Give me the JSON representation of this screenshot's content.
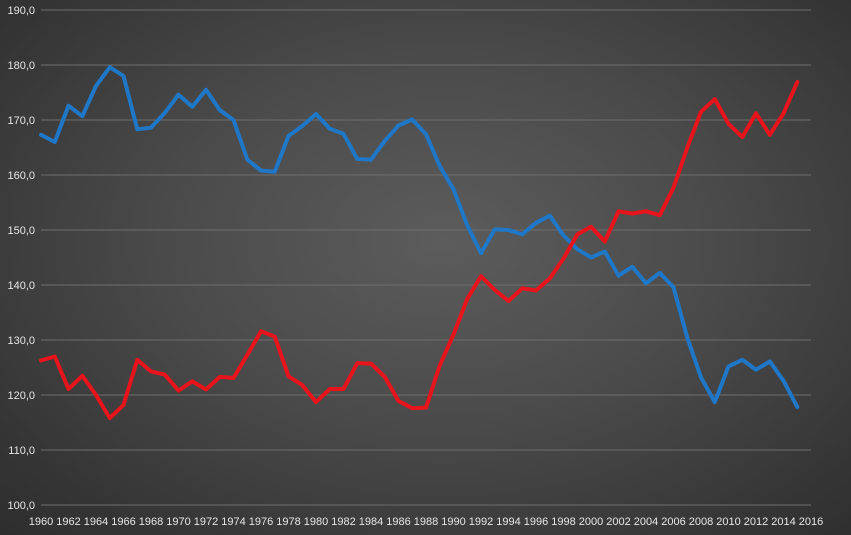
{
  "chart_data": {
    "type": "line",
    "title": "",
    "xlabel": "",
    "ylabel": "",
    "ylim": [
      100,
      190
    ],
    "y_ticks": [
      "100,0",
      "110,0",
      "120,0",
      "130,0",
      "140,0",
      "150,0",
      "160,0",
      "170,0",
      "180,0",
      "190,0"
    ],
    "y_tick_values": [
      100,
      110,
      120,
      130,
      140,
      150,
      160,
      170,
      180,
      190
    ],
    "x_ticks": [
      "1960",
      "1962",
      "1964",
      "1966",
      "1968",
      "1970",
      "1972",
      "1974",
      "1976",
      "1978",
      "1980",
      "1982",
      "1984",
      "1986",
      "1988",
      "1990",
      "1992",
      "1994",
      "1996",
      "1998",
      "2000",
      "2002",
      "2004",
      "2006",
      "2008",
      "2010",
      "2012",
      "2014",
      "2016"
    ],
    "x_tick_values": [
      1960,
      1962,
      1964,
      1966,
      1968,
      1970,
      1972,
      1974,
      1976,
      1978,
      1980,
      1982,
      1984,
      1986,
      1988,
      1990,
      1992,
      1994,
      1996,
      1998,
      2000,
      2002,
      2004,
      2006,
      2008,
      2010,
      2012,
      2014,
      2016
    ],
    "xlim": [
      1960,
      2016
    ],
    "grid": true,
    "legend": "none",
    "x": [
      1960,
      1961,
      1962,
      1963,
      1964,
      1965,
      1966,
      1967,
      1968,
      1969,
      1970,
      1971,
      1972,
      1973,
      1974,
      1975,
      1976,
      1977,
      1978,
      1979,
      1980,
      1981,
      1982,
      1983,
      1984,
      1985,
      1986,
      1987,
      1988,
      1989,
      1990,
      1991,
      1992,
      1993,
      1994,
      1995,
      1996,
      1997,
      1998,
      1999,
      2000,
      2001,
      2002,
      2003,
      2004,
      2005,
      2006,
      2007,
      2008,
      2009,
      2010,
      2011,
      2012,
      2013,
      2014,
      2015
    ],
    "series": [
      {
        "color": "#1f77c8",
        "values": [
          167.3,
          166.0,
          172.6,
          170.7,
          176.2,
          179.6,
          178.0,
          168.3,
          168.6,
          171.3,
          174.6,
          172.4,
          175.5,
          171.8,
          170.0,
          162.8,
          160.8,
          160.6,
          167.1,
          168.9,
          171.1,
          168.4,
          167.5,
          162.9,
          162.8,
          166.2,
          169.0,
          170.1,
          167.4,
          161.6,
          157.4,
          150.8,
          145.8,
          150.1,
          150.0,
          149.2,
          151.3,
          152.6,
          149.0,
          146.5,
          145.0,
          146.1,
          141.7,
          143.3,
          140.3,
          142.2,
          139.6,
          130.4,
          123.2,
          118.7,
          125.2,
          126.4,
          124.6,
          126.1,
          122.6,
          117.8
        ]
      },
      {
        "color": "#e8141c",
        "values": [
          126.3,
          127.0,
          121.1,
          123.5,
          120.0,
          115.8,
          118.2,
          126.4,
          124.3,
          123.7,
          120.8,
          122.5,
          121.0,
          123.3,
          123.1,
          127.3,
          131.6,
          130.6,
          123.4,
          121.8,
          118.7,
          121.1,
          121.1,
          125.8,
          125.7,
          123.3,
          118.9,
          117.6,
          117.7,
          125.4,
          131.0,
          137.5,
          141.6,
          139.1,
          137.1,
          139.4,
          139.0,
          141.2,
          144.8,
          149.2,
          150.6,
          147.9,
          153.4,
          153.0,
          153.4,
          152.7,
          157.7,
          165.0,
          171.5,
          173.8,
          169.3,
          166.9,
          171.2,
          167.3,
          171.2,
          176.9
        ]
      }
    ]
  }
}
